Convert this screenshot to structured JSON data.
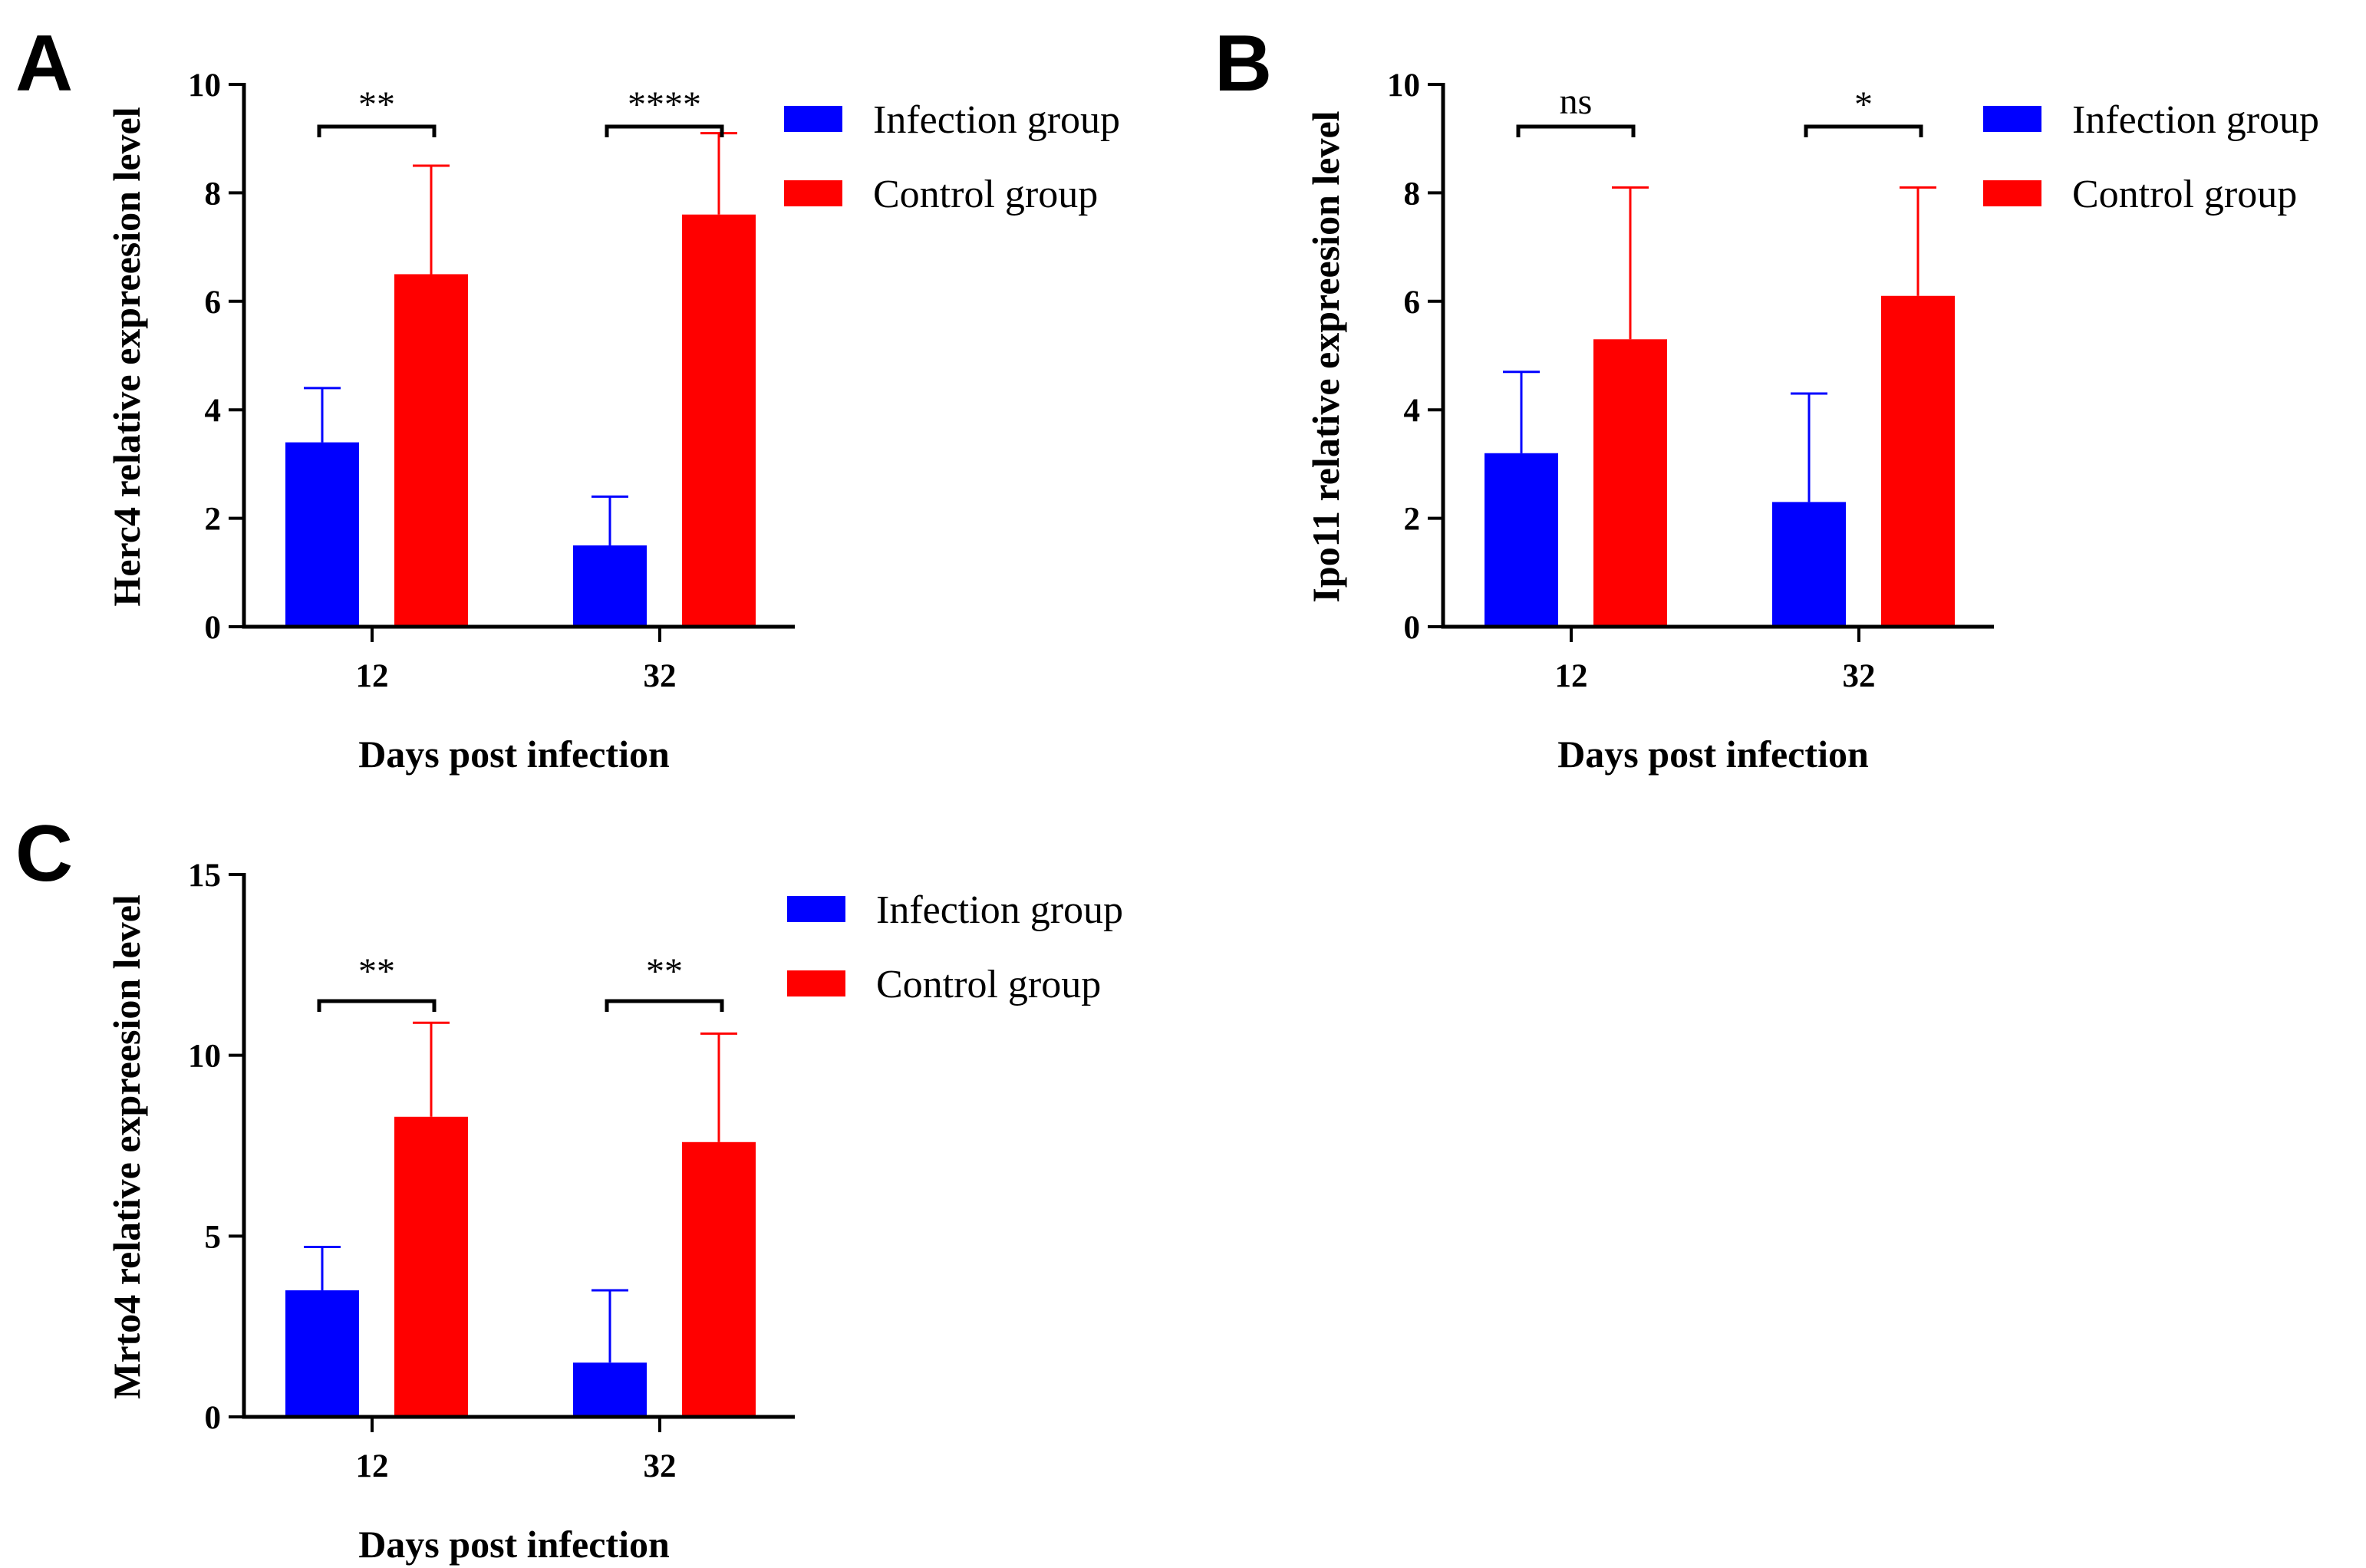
{
  "figure": {
    "colors": {
      "infection": "#0000ff",
      "control": "#ff0000",
      "axis": "#000000"
    }
  },
  "chart_data": [
    {
      "panel": "A",
      "type": "bar",
      "title": "",
      "xlabel": "Days post infection",
      "ylabel": "Herc4 relative expreesion level",
      "categories": [
        "12",
        "32"
      ],
      "ylim": [
        0,
        10
      ],
      "yticks": [
        0,
        2,
        4,
        6,
        8,
        10
      ],
      "series": [
        {
          "name": "Infection group",
          "color": "#0000ff",
          "values": [
            3.4,
            1.5
          ],
          "errors": [
            1.0,
            0.9
          ]
        },
        {
          "name": "Control group",
          "color": "#ff0000",
          "values": [
            6.5,
            7.6
          ],
          "errors": [
            2.0,
            1.5
          ]
        }
      ],
      "significance": [
        "**",
        "****"
      ],
      "legend_position": "top-right"
    },
    {
      "panel": "B",
      "type": "bar",
      "title": "",
      "xlabel": "Days post infection",
      "ylabel": "Ipo11 relative expreesion level",
      "categories": [
        "12",
        "32"
      ],
      "ylim": [
        0,
        10
      ],
      "yticks": [
        0,
        2,
        4,
        6,
        8,
        10
      ],
      "series": [
        {
          "name": "Infection group",
          "color": "#0000ff",
          "values": [
            3.2,
            2.3
          ],
          "errors": [
            1.5,
            2.0
          ]
        },
        {
          "name": "Control group",
          "color": "#ff0000",
          "values": [
            5.3,
            6.1
          ],
          "errors": [
            2.8,
            2.0
          ]
        }
      ],
      "significance": [
        "ns",
        "*"
      ],
      "legend_position": "top-right"
    },
    {
      "panel": "C",
      "type": "bar",
      "title": "",
      "xlabel": "Days post infection",
      "ylabel": "Mrto4 relative expreesion level",
      "categories": [
        "12",
        "32"
      ],
      "ylim": [
        0,
        15
      ],
      "yticks": [
        0,
        5,
        10,
        15
      ],
      "series": [
        {
          "name": "Infection group",
          "color": "#0000ff",
          "values": [
            3.5,
            1.5
          ],
          "errors": [
            1.2,
            2.0
          ]
        },
        {
          "name": "Control group",
          "color": "#ff0000",
          "values": [
            8.3,
            7.6
          ],
          "errors": [
            2.6,
            3.0
          ]
        }
      ],
      "significance": [
        "**",
        "**"
      ],
      "legend_position": "top-right"
    }
  ]
}
